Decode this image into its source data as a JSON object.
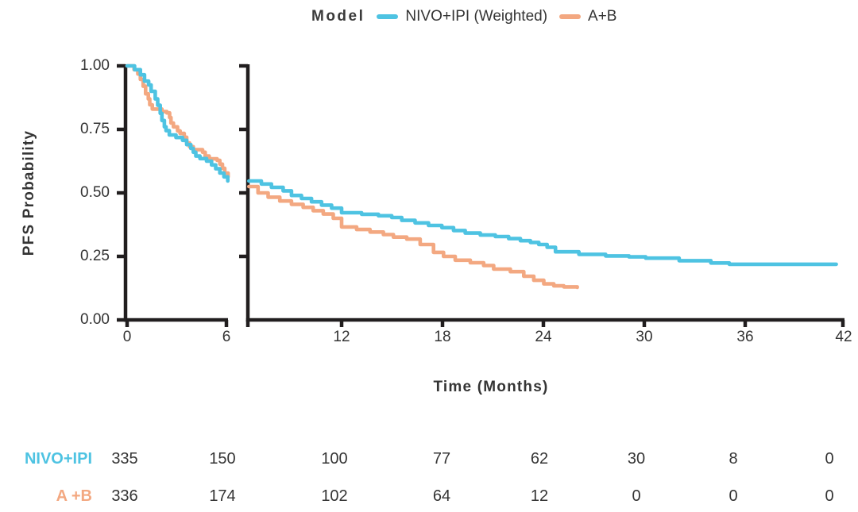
{
  "legend": {
    "title": "Model",
    "items": [
      {
        "label": "NIVO+IPI (Weighted)",
        "color": "#4EC3E2"
      },
      {
        "label": "A+B",
        "color": "#F3A881"
      }
    ]
  },
  "chart_data": {
    "type": "line",
    "subtype": "kaplan-meier-step-broken-x-axis",
    "title": "",
    "xlabel": "Time (Months)",
    "ylabel": "PFS Probability",
    "ylim": [
      0,
      1
    ],
    "y_ticks": [
      "1.00",
      "0.75",
      "0.50",
      "0.25",
      "0.00"
    ],
    "x_ticks": {
      "left_panel": [
        "0",
        "6"
      ],
      "right_panel": [
        "12",
        "18",
        "24",
        "30",
        "36",
        "42"
      ]
    },
    "xlim_left_panel": [
      0,
      6.1
    ],
    "xlim_right_panel": [
      6.45,
      42
    ],
    "grid": false,
    "legend_position": "top-center",
    "axis_color": "#211E1F",
    "series": [
      {
        "name": "NIVO+IPI (Weighted)",
        "color": "#4EC3E2",
        "left_panel": [
          [
            0,
            1.0
          ],
          [
            0.45,
            0.985
          ],
          [
            0.8,
            0.965
          ],
          [
            1.05,
            0.94
          ],
          [
            1.3,
            0.925
          ],
          [
            1.45,
            0.9
          ],
          [
            1.7,
            0.87
          ],
          [
            1.85,
            0.845
          ],
          [
            2.0,
            0.813
          ],
          [
            2.1,
            0.785
          ],
          [
            2.25,
            0.76
          ],
          [
            2.35,
            0.745
          ],
          [
            2.55,
            0.728
          ],
          [
            2.95,
            0.718
          ],
          [
            3.35,
            0.707
          ],
          [
            3.6,
            0.69
          ],
          [
            3.85,
            0.675
          ],
          [
            4.0,
            0.66
          ],
          [
            4.15,
            0.645
          ],
          [
            4.4,
            0.635
          ],
          [
            4.8,
            0.625
          ],
          [
            5.1,
            0.61
          ],
          [
            5.35,
            0.595
          ],
          [
            5.6,
            0.578
          ],
          [
            5.85,
            0.563
          ],
          [
            6.08,
            0.547
          ]
        ],
        "right_panel": [
          [
            6.45,
            0.547
          ],
          [
            7.2,
            0.535
          ],
          [
            7.8,
            0.522
          ],
          [
            8.5,
            0.508
          ],
          [
            9.0,
            0.49
          ],
          [
            9.6,
            0.478
          ],
          [
            10.2,
            0.465
          ],
          [
            10.8,
            0.452
          ],
          [
            11.4,
            0.44
          ],
          [
            12.0,
            0.422
          ],
          [
            13.2,
            0.416
          ],
          [
            14.2,
            0.41
          ],
          [
            15.0,
            0.403
          ],
          [
            15.6,
            0.392
          ],
          [
            16.4,
            0.382
          ],
          [
            17.2,
            0.372
          ],
          [
            18.0,
            0.363
          ],
          [
            18.7,
            0.352
          ],
          [
            19.4,
            0.342
          ],
          [
            20.3,
            0.334
          ],
          [
            21.2,
            0.328
          ],
          [
            22.0,
            0.32
          ],
          [
            22.7,
            0.312
          ],
          [
            23.3,
            0.305
          ],
          [
            23.8,
            0.297
          ],
          [
            24.3,
            0.286
          ],
          [
            24.8,
            0.268
          ],
          [
            26.2,
            0.258
          ],
          [
            27.8,
            0.252
          ],
          [
            29.2,
            0.248
          ],
          [
            30.2,
            0.243
          ],
          [
            32.2,
            0.233
          ],
          [
            34.1,
            0.224
          ],
          [
            35.2,
            0.219
          ],
          [
            41.6,
            0.219
          ]
        ]
      },
      {
        "name": "A+B",
        "color": "#F3A881",
        "left_panel": [
          [
            0,
            1.0
          ],
          [
            0.42,
            0.985
          ],
          [
            0.65,
            0.968
          ],
          [
            0.8,
            0.947
          ],
          [
            0.97,
            0.92
          ],
          [
            1.12,
            0.89
          ],
          [
            1.28,
            0.87
          ],
          [
            1.37,
            0.847
          ],
          [
            1.52,
            0.83
          ],
          [
            2.1,
            0.82
          ],
          [
            2.4,
            0.815
          ],
          [
            2.57,
            0.797
          ],
          [
            2.65,
            0.775
          ],
          [
            2.8,
            0.76
          ],
          [
            3.05,
            0.744
          ],
          [
            3.2,
            0.734
          ],
          [
            3.45,
            0.719
          ],
          [
            3.6,
            0.697
          ],
          [
            3.77,
            0.682
          ],
          [
            4.0,
            0.67
          ],
          [
            4.56,
            0.66
          ],
          [
            4.72,
            0.645
          ],
          [
            4.96,
            0.634
          ],
          [
            5.44,
            0.628
          ],
          [
            5.6,
            0.613
          ],
          [
            5.76,
            0.597
          ],
          [
            5.9,
            0.578
          ],
          [
            6.1,
            0.563
          ]
        ],
        "right_panel": [
          [
            6.45,
            0.525
          ],
          [
            7.0,
            0.5
          ],
          [
            7.6,
            0.483
          ],
          [
            8.3,
            0.468
          ],
          [
            9.0,
            0.455
          ],
          [
            9.7,
            0.443
          ],
          [
            10.3,
            0.43
          ],
          [
            10.9,
            0.417
          ],
          [
            11.5,
            0.4
          ],
          [
            12.0,
            0.366
          ],
          [
            12.9,
            0.356
          ],
          [
            13.7,
            0.346
          ],
          [
            14.5,
            0.336
          ],
          [
            15.1,
            0.326
          ],
          [
            15.9,
            0.318
          ],
          [
            16.7,
            0.297
          ],
          [
            17.5,
            0.266
          ],
          [
            18.1,
            0.25
          ],
          [
            18.8,
            0.235
          ],
          [
            19.7,
            0.225
          ],
          [
            20.5,
            0.214
          ],
          [
            21.1,
            0.2
          ],
          [
            22.1,
            0.19
          ],
          [
            22.9,
            0.172
          ],
          [
            23.5,
            0.156
          ],
          [
            24.1,
            0.142
          ],
          [
            24.7,
            0.134
          ],
          [
            25.3,
            0.13
          ],
          [
            26.1,
            0.128
          ]
        ]
      }
    ],
    "at_risk_table": {
      "time_points": [
        0,
        6,
        12,
        18,
        24,
        30,
        36,
        42
      ],
      "rows": [
        {
          "label": "NIVO+IPI",
          "color": "#4EC3E2",
          "values": [
            "335",
            "150",
            "100",
            "77",
            "62",
            "30",
            "8",
            "0"
          ]
        },
        {
          "label": "A +B",
          "color": "#F3A881",
          "values": [
            "336",
            "174",
            "102",
            "64",
            "12",
            "0",
            "0",
            "0"
          ]
        }
      ]
    }
  }
}
